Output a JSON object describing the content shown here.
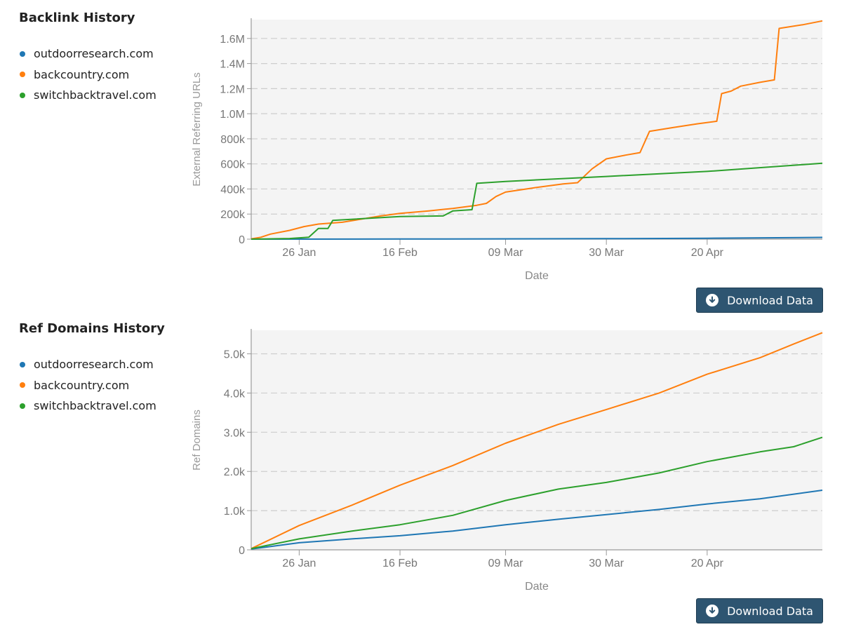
{
  "sections": [
    {
      "title": "Backlink History",
      "legend": [
        {
          "label": "outdoorresearch.com",
          "color": "#1f77b4"
        },
        {
          "label": "backcountry.com",
          "color": "#ff7f0e"
        },
        {
          "label": "switchbacktravel.com",
          "color": "#2ca02c"
        }
      ],
      "download_label": "Download Data"
    },
    {
      "title": "Ref Domains History",
      "legend": [
        {
          "label": "outdoorresearch.com",
          "color": "#1f77b4"
        },
        {
          "label": "backcountry.com",
          "color": "#ff7f0e"
        },
        {
          "label": "switchbacktravel.com",
          "color": "#2ca02c"
        }
      ],
      "download_label": "Download Data"
    }
  ],
  "chart_data": [
    {
      "type": "line",
      "title": "Backlink History",
      "xlabel": "Date",
      "ylabel": "External Referring URLs",
      "x_type": "date",
      "xlim": [
        "2016-01-16",
        "2016-05-14"
      ],
      "x_ticks": [
        {
          "date": "2016-01-26",
          "label": "26 Jan"
        },
        {
          "date": "2016-02-16",
          "label": "16 Feb"
        },
        {
          "date": "2016-03-09",
          "label": "09 Mar"
        },
        {
          "date": "2016-03-30",
          "label": "30 Mar"
        },
        {
          "date": "2016-04-20",
          "label": "20 Apr"
        }
      ],
      "ylim": [
        0,
        1750000
      ],
      "y_ticks": [
        {
          "value": 0,
          "label": "0"
        },
        {
          "value": 200000,
          "label": "200k"
        },
        {
          "value": 400000,
          "label": "400k"
        },
        {
          "value": 600000,
          "label": "600k"
        },
        {
          "value": 800000,
          "label": "800k"
        },
        {
          "value": 1000000,
          "label": "1.0M"
        },
        {
          "value": 1200000,
          "label": "1.2M"
        },
        {
          "value": 1400000,
          "label": "1.4M"
        },
        {
          "value": 1600000,
          "label": "1.6M"
        }
      ],
      "grid": true,
      "legend_position": "left",
      "series": [
        {
          "name": "outdoorresearch.com",
          "color": "#1f77b4",
          "points": [
            [
              "2016-01-16",
              0
            ],
            [
              "2016-02-16",
              1000
            ],
            [
              "2016-03-30",
              4000
            ],
            [
              "2016-04-20",
              7000
            ],
            [
              "2016-05-14",
              14000
            ]
          ]
        },
        {
          "name": "backcountry.com",
          "color": "#ff7f0e",
          "points": [
            [
              "2016-01-16",
              2000
            ],
            [
              "2016-01-18",
              15000
            ],
            [
              "2016-01-20",
              40000
            ],
            [
              "2016-01-24",
              70000
            ],
            [
              "2016-01-27",
              100000
            ],
            [
              "2016-01-30",
              120000
            ],
            [
              "2016-02-04",
              135000
            ],
            [
              "2016-02-08",
              160000
            ],
            [
              "2016-02-12",
              185000
            ],
            [
              "2016-02-16",
              205000
            ],
            [
              "2016-02-22",
              225000
            ],
            [
              "2016-02-27",
              245000
            ],
            [
              "2016-03-03",
              270000
            ],
            [
              "2016-03-05",
              285000
            ],
            [
              "2016-03-07",
              340000
            ],
            [
              "2016-03-09",
              375000
            ],
            [
              "2016-03-15",
              410000
            ],
            [
              "2016-03-21",
              440000
            ],
            [
              "2016-03-24",
              450000
            ],
            [
              "2016-03-27",
              560000
            ],
            [
              "2016-03-30",
              640000
            ],
            [
              "2016-04-03",
              670000
            ],
            [
              "2016-04-06",
              690000
            ],
            [
              "2016-04-08",
              860000
            ],
            [
              "2016-04-13",
              890000
            ],
            [
              "2016-04-18",
              920000
            ],
            [
              "2016-04-22",
              940000
            ],
            [
              "2016-04-23",
              1160000
            ],
            [
              "2016-04-25",
              1180000
            ],
            [
              "2016-04-27",
              1220000
            ],
            [
              "2016-05-01",
              1250000
            ],
            [
              "2016-05-04",
              1270000
            ],
            [
              "2016-05-05",
              1680000
            ],
            [
              "2016-05-10",
              1710000
            ],
            [
              "2016-05-14",
              1740000
            ]
          ]
        },
        {
          "name": "switchbacktravel.com",
          "color": "#2ca02c",
          "points": [
            [
              "2016-01-16",
              0
            ],
            [
              "2016-01-24",
              5000
            ],
            [
              "2016-01-28",
              15000
            ],
            [
              "2016-01-30",
              85000
            ],
            [
              "2016-02-01",
              85000
            ],
            [
              "2016-02-02",
              150000
            ],
            [
              "2016-02-16",
              180000
            ],
            [
              "2016-02-25",
              185000
            ],
            [
              "2016-02-27",
              225000
            ],
            [
              "2016-03-02",
              235000
            ],
            [
              "2016-03-03",
              445000
            ],
            [
              "2016-03-09",
              460000
            ],
            [
              "2016-03-30",
              500000
            ],
            [
              "2016-04-20",
              540000
            ],
            [
              "2016-05-14",
              605000
            ]
          ]
        }
      ]
    },
    {
      "type": "line",
      "title": "Ref Domains History",
      "xlabel": "Date",
      "ylabel": "Ref Domains",
      "x_type": "date",
      "xlim": [
        "2016-01-16",
        "2016-05-14"
      ],
      "x_ticks": [
        {
          "date": "2016-01-26",
          "label": "26 Jan"
        },
        {
          "date": "2016-02-16",
          "label": "16 Feb"
        },
        {
          "date": "2016-03-09",
          "label": "09 Mar"
        },
        {
          "date": "2016-03-30",
          "label": "30 Mar"
        },
        {
          "date": "2016-04-20",
          "label": "20 Apr"
        }
      ],
      "ylim": [
        0,
        5600
      ],
      "y_ticks": [
        {
          "value": 0,
          "label": "0"
        },
        {
          "value": 1000,
          "label": "1.0k"
        },
        {
          "value": 2000,
          "label": "2.0k"
        },
        {
          "value": 3000,
          "label": "3.0k"
        },
        {
          "value": 4000,
          "label": "4.0k"
        },
        {
          "value": 5000,
          "label": "5.0k"
        }
      ],
      "grid": true,
      "legend_position": "left",
      "series": [
        {
          "name": "outdoorresearch.com",
          "color": "#1f77b4",
          "points": [
            [
              "2016-01-16",
              20
            ],
            [
              "2016-01-26",
              180
            ],
            [
              "2016-02-06",
              280
            ],
            [
              "2016-02-16",
              360
            ],
            [
              "2016-02-27",
              480
            ],
            [
              "2016-03-09",
              640
            ],
            [
              "2016-03-20",
              780
            ],
            [
              "2016-03-30",
              900
            ],
            [
              "2016-04-10",
              1030
            ],
            [
              "2016-04-20",
              1170
            ],
            [
              "2016-05-01",
              1300
            ],
            [
              "2016-05-14",
              1520
            ]
          ]
        },
        {
          "name": "backcountry.com",
          "color": "#ff7f0e",
          "points": [
            [
              "2016-01-16",
              30
            ],
            [
              "2016-01-26",
              620
            ],
            [
              "2016-02-06",
              1140
            ],
            [
              "2016-02-16",
              1650
            ],
            [
              "2016-02-27",
              2150
            ],
            [
              "2016-03-09",
              2720
            ],
            [
              "2016-03-20",
              3200
            ],
            [
              "2016-03-30",
              3580
            ],
            [
              "2016-04-10",
              4000
            ],
            [
              "2016-04-20",
              4480
            ],
            [
              "2016-05-01",
              4900
            ],
            [
              "2016-05-08",
              5250
            ],
            [
              "2016-05-14",
              5540
            ]
          ]
        },
        {
          "name": "switchbacktravel.com",
          "color": "#2ca02c",
          "points": [
            [
              "2016-01-16",
              30
            ],
            [
              "2016-01-26",
              280
            ],
            [
              "2016-02-06",
              480
            ],
            [
              "2016-02-16",
              640
            ],
            [
              "2016-02-27",
              880
            ],
            [
              "2016-03-09",
              1260
            ],
            [
              "2016-03-20",
              1550
            ],
            [
              "2016-03-30",
              1720
            ],
            [
              "2016-04-10",
              1960
            ],
            [
              "2016-04-20",
              2250
            ],
            [
              "2016-05-01",
              2500
            ],
            [
              "2016-05-08",
              2630
            ],
            [
              "2016-05-14",
              2870
            ]
          ]
        }
      ]
    }
  ]
}
